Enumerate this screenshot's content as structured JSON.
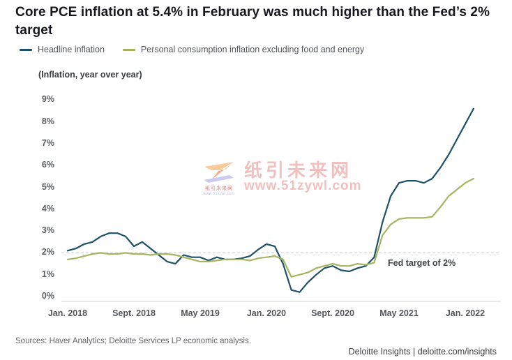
{
  "header": {
    "title": "Core PCE inflation at 5.4% in February was much higher than the Fed’s 2% target"
  },
  "legend": [
    {
      "label": "Headline inflation",
      "color": "#1d5168"
    },
    {
      "label": "Personal consumption inflation excluding food and energy",
      "color": "#a7b45f"
    }
  ],
  "chart_data": {
    "type": "line",
    "subtitle": "(Inflation, year over year)",
    "x_start": "Jan. 2018",
    "x_end": "Feb. 2022",
    "x_frequency": "monthly",
    "x_tick_labels": [
      "Jan. 2018",
      "Sept. 2018",
      "May 2019",
      "Jan. 2020",
      "Sept. 2020",
      "May 2021",
      "Jan. 2022"
    ],
    "x_tick_month_index": [
      0,
      8,
      16,
      24,
      32,
      40,
      48
    ],
    "y_ticks": [
      "9%",
      "8%",
      "7%",
      "6%",
      "5%",
      "4%",
      "3%",
      "2%",
      "1%",
      "0%"
    ],
    "ylim": [
      0,
      9
    ],
    "grid": "off",
    "fed_target": 2,
    "annotation": {
      "text": "Fed target of 2%",
      "y": 2
    },
    "series": [
      {
        "name": "Headline inflation",
        "color": "#1d5168",
        "values": [
          2.1,
          2.2,
          2.4,
          2.5,
          2.75,
          2.9,
          2.9,
          2.75,
          2.3,
          2.5,
          2.2,
          1.9,
          1.6,
          1.5,
          1.9,
          1.8,
          1.8,
          1.65,
          1.8,
          1.7,
          1.7,
          1.75,
          1.85,
          2.15,
          2.4,
          2.3,
          1.5,
          0.3,
          0.2,
          0.65,
          1.0,
          1.3,
          1.4,
          1.2,
          1.15,
          1.3,
          1.4,
          1.8,
          3.4,
          4.6,
          5.2,
          5.3,
          5.3,
          5.2,
          5.4,
          5.9,
          6.5,
          7.2,
          7.9,
          8.6
        ]
      },
      {
        "name": "Personal consumption inflation excluding food and energy",
        "color": "#a7b45f",
        "values": [
          1.7,
          1.75,
          1.85,
          1.95,
          2.0,
          1.95,
          1.95,
          2.0,
          1.95,
          1.95,
          1.9,
          1.95,
          1.95,
          1.9,
          1.8,
          1.7,
          1.6,
          1.6,
          1.65,
          1.7,
          1.7,
          1.7,
          1.65,
          1.75,
          1.8,
          1.85,
          1.7,
          0.9,
          1.0,
          1.1,
          1.3,
          1.4,
          1.5,
          1.4,
          1.4,
          1.5,
          1.45,
          1.55,
          2.8,
          3.3,
          3.55,
          3.6,
          3.6,
          3.6,
          3.65,
          4.1,
          4.6,
          4.9,
          5.2,
          5.4
        ]
      }
    ]
  },
  "watermark": {
    "title": "纸引未来网",
    "url": "www.51zywl.com",
    "logo_caption": "纸引未来网",
    "logo_caption2": "www.51zywl.com",
    "color": "#e98b8b"
  },
  "footer": {
    "sources": "Sources: Haver Analytics; Deloitte Services LP economic analysis.",
    "brand": "Deloitte Insights | deloitte.com/insights"
  }
}
